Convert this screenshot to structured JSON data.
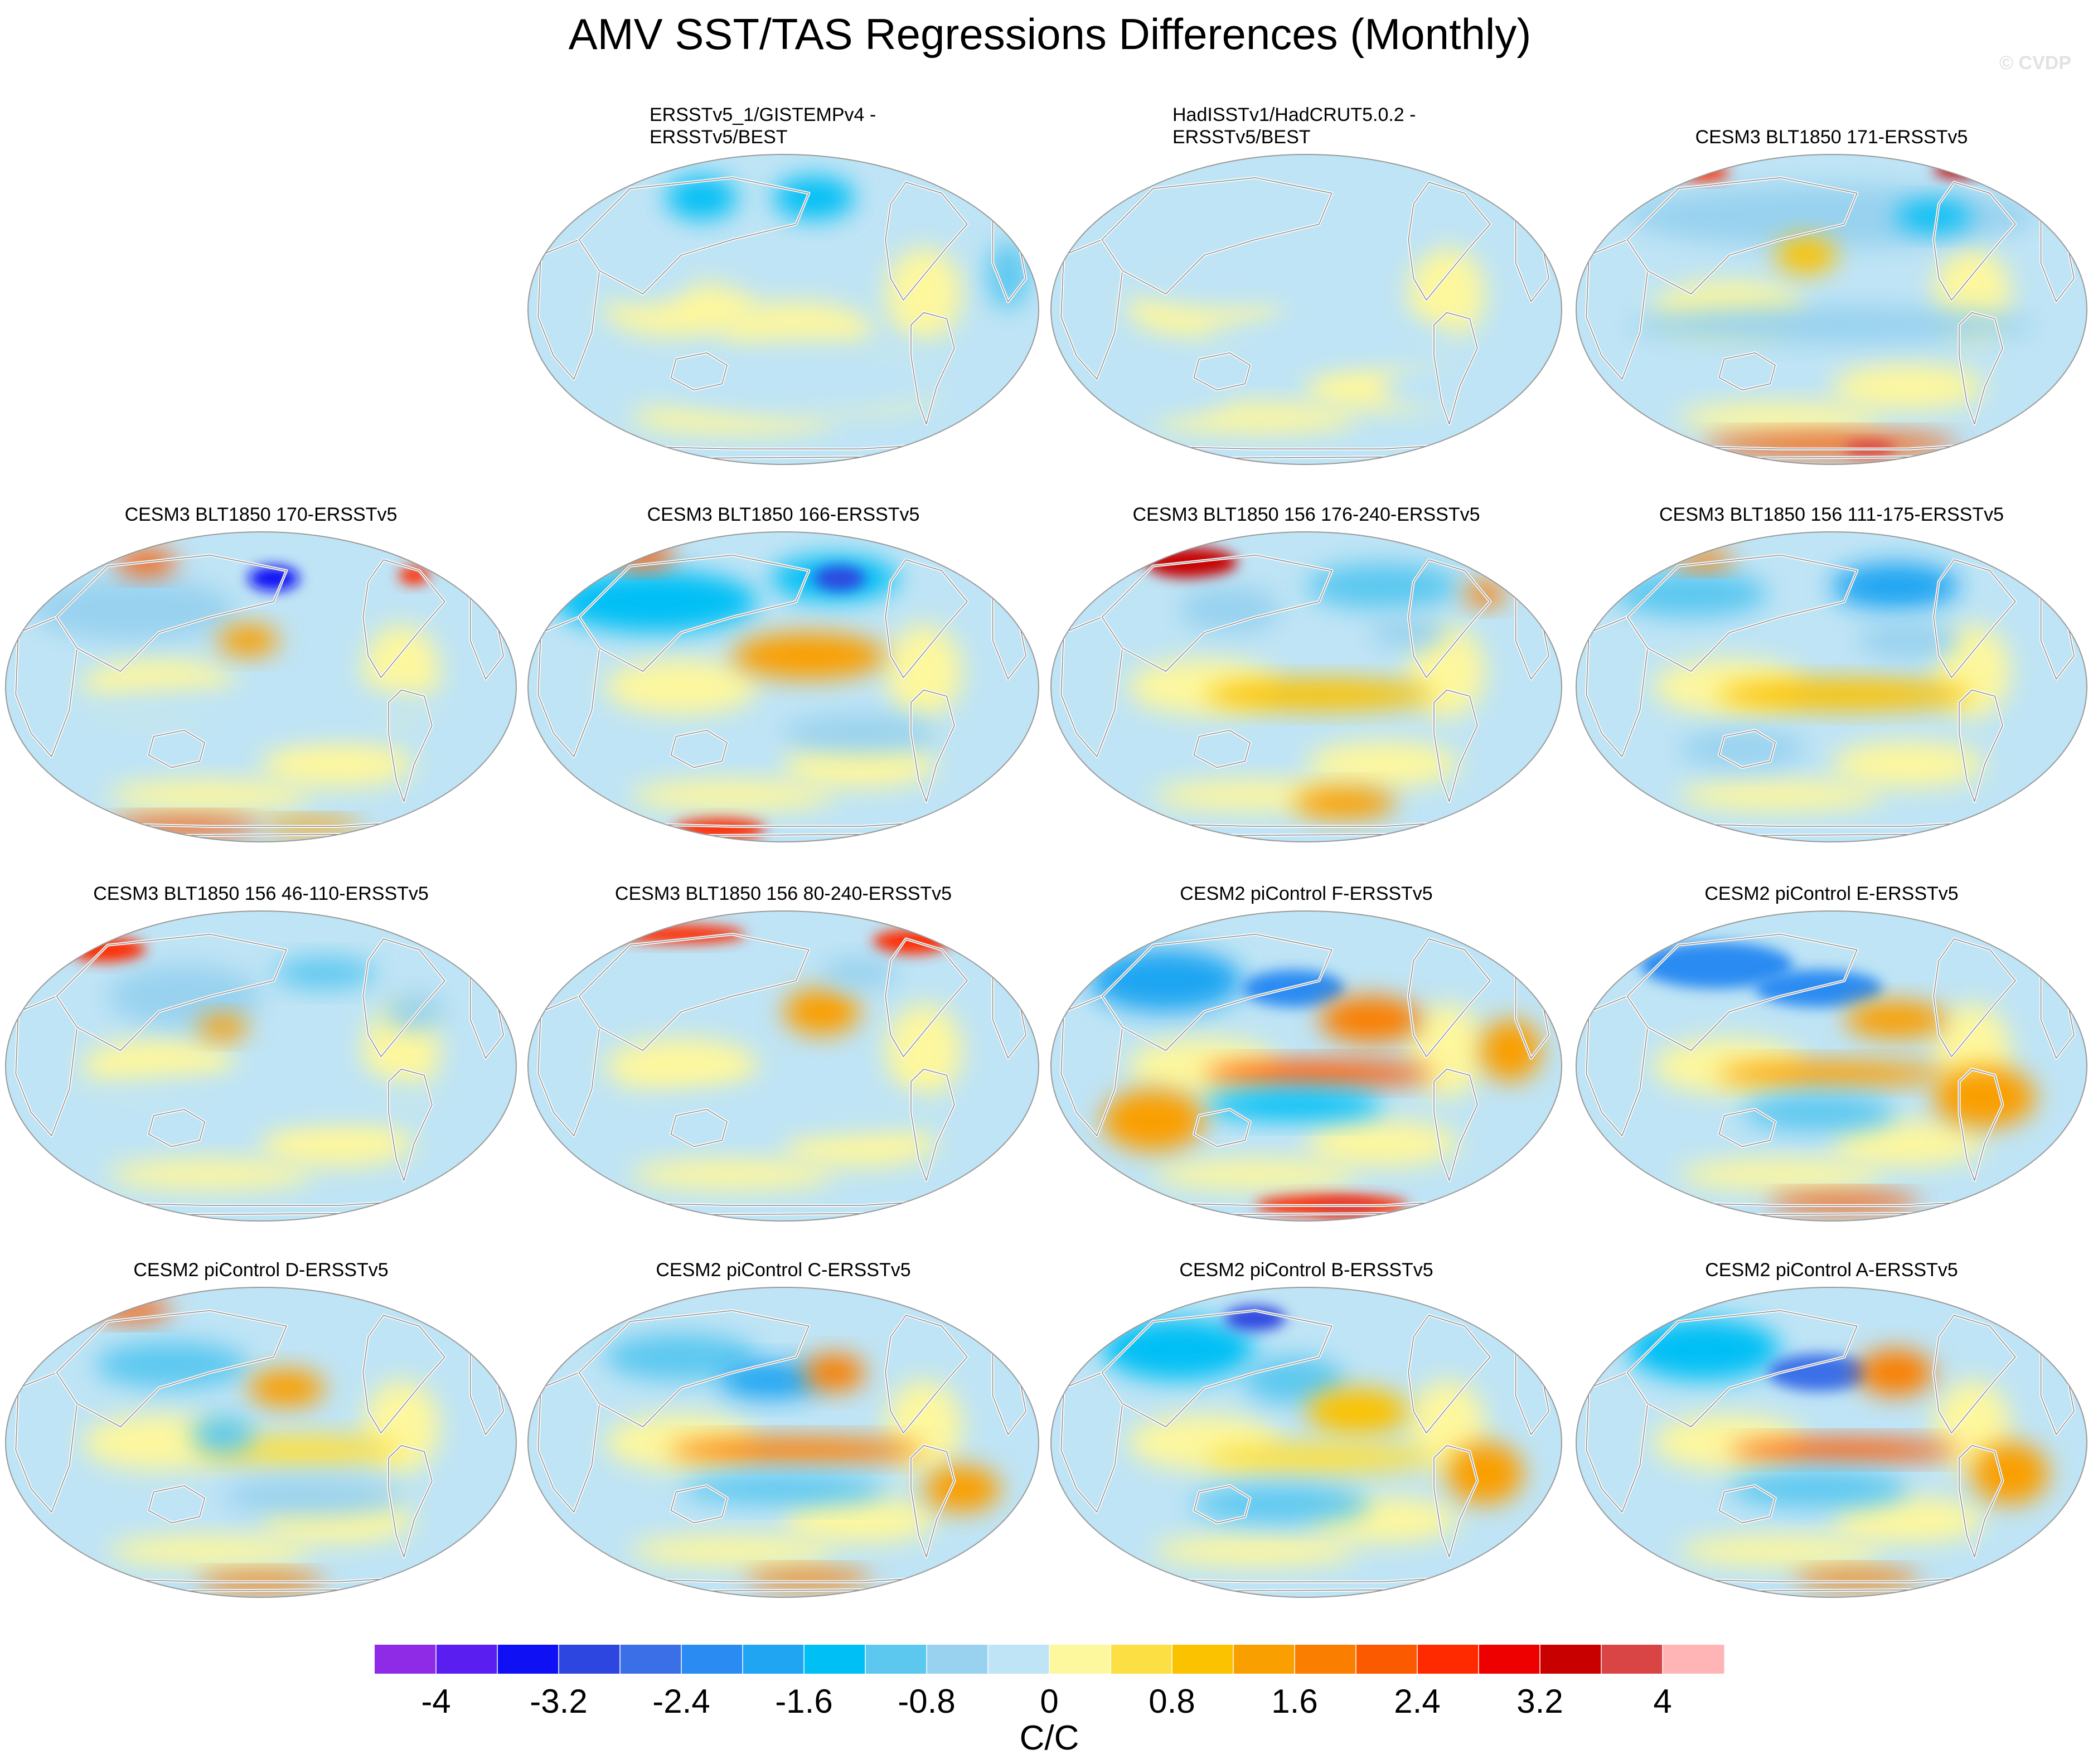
{
  "chart_data": {
    "type": "heatmap",
    "title": "AMV SST/TAS Regressions Differences (Monthly)",
    "watermark": "© CVDP",
    "colorbar": {
      "unit_label": "C/C",
      "tick_labels": [
        "-4",
        "-3.2",
        "-2.4",
        "-1.6",
        "-0.8",
        "0",
        "0.8",
        "1.6",
        "2.4",
        "3.2",
        "4"
      ],
      "levels": [
        -4.4,
        -4,
        -3.6,
        -3.2,
        -2.8,
        -2.4,
        -2,
        -1.6,
        -1.2,
        -0.8,
        -0.4,
        0,
        0.4,
        0.8,
        1.2,
        1.6,
        2,
        2.4,
        2.8,
        3.2,
        3.6,
        4,
        4.4
      ],
      "colors": [
        "#8f2be6",
        "#5a1ff0",
        "#1010f5",
        "#2e46e0",
        "#3a6fe8",
        "#2a8bf2",
        "#1fa5f2",
        "#00bff5",
        "#5cc8f0",
        "#98d2ef",
        "#bfe4f5",
        "#fdf79e",
        "#fce043",
        "#fbc200",
        "#fa9f00",
        "#fa7f00",
        "#fb5a00",
        "#ff2a00",
        "#ee0000",
        "#c80000",
        "#d94545",
        "#ffb5b5"
      ]
    },
    "panels": [
      {
        "title": "ERSSTv5_1/GISTEMPv4 -",
        "title2": "ERSSTv5/BEST",
        "row": 0,
        "col": 1,
        "blobs": [
          [
            0.12,
            -0.72,
            0.16,
            0.14,
            -1.6
          ],
          [
            -0.32,
            -0.72,
            0.14,
            0.14,
            -1.6
          ],
          [
            0.88,
            -0.22,
            0.08,
            0.22,
            -1.2
          ],
          [
            -0.55,
            -0.25,
            0.2,
            0.22,
            -0.4
          ],
          [
            0.05,
            0.15,
            0.3,
            0.2,
            0
          ],
          [
            0.1,
            0.45,
            0.6,
            0.25,
            -0.4
          ]
        ]
      },
      {
        "title": "HadISSTv1/HadCRUT5.0.2 -",
        "title2": "ERSSTv5/BEST",
        "row": 0,
        "col": 2,
        "blobs": [
          [
            -0.3,
            -0.2,
            0.4,
            0.2,
            -0.4
          ],
          [
            0.1,
            0.2,
            0.5,
            0.15,
            -0.4
          ],
          [
            0.6,
            0.5,
            0.3,
            0.2,
            -0.4
          ],
          [
            -0.6,
            0.5,
            0.3,
            0.2,
            -0.4
          ],
          [
            0.3,
            -0.55,
            0.2,
            0.15,
            -0.4
          ]
        ]
      },
      {
        "title": "CESM3 BLT1850 171-ERSSTv5",
        "row": 0,
        "col": 3,
        "blobs": [
          [
            0,
            -0.6,
            0.8,
            0.2,
            -0.8
          ],
          [
            0.4,
            -0.6,
            0.15,
            0.1,
            -1.6
          ],
          [
            0.5,
            -0.9,
            0.1,
            0.05,
            3.2
          ],
          [
            -0.5,
            -0.88,
            0.1,
            0.05,
            2.4
          ],
          [
            0,
            0.1,
            0.8,
            0.12,
            -0.8
          ],
          [
            0,
            0.87,
            0.5,
            0.07,
            2.0
          ],
          [
            0.15,
            0.9,
            0.1,
            0.05,
            3.6
          ],
          [
            -0.1,
            -0.35,
            0.12,
            0.12,
            0.8
          ]
        ]
      },
      {
        "title": "CESM3 BLT1850 170-ERSSTv5",
        "row": 1,
        "col": 0,
        "blobs": [
          [
            -0.5,
            -0.5,
            0.4,
            0.2,
            -0.8
          ],
          [
            0.05,
            -0.7,
            0.1,
            0.08,
            -3.6
          ],
          [
            -0.45,
            -0.8,
            0.12,
            0.08,
            2.0
          ],
          [
            -0.05,
            -0.3,
            0.12,
            0.1,
            1.2
          ],
          [
            0.6,
            -0.72,
            0.06,
            0.06,
            2.4
          ],
          [
            0,
            0.15,
            0.8,
            0.15,
            -0.4
          ],
          [
            -0.3,
            0.9,
            0.3,
            0.06,
            2.0
          ],
          [
            0.2,
            0.9,
            0.2,
            0.05,
            1.2
          ]
        ]
      },
      {
        "title": "CESM3 BLT1850 166-ERSSTv5",
        "row": 1,
        "col": 1,
        "blobs": [
          [
            -0.5,
            -0.55,
            0.4,
            0.2,
            -1.6
          ],
          [
            0.2,
            -0.7,
            0.25,
            0.15,
            -1.6
          ],
          [
            0.22,
            -0.7,
            0.1,
            0.08,
            -3.2
          ],
          [
            -0.55,
            -0.85,
            0.12,
            0.08,
            2.0
          ],
          [
            0.1,
            -0.2,
            0.3,
            0.15,
            1.2
          ],
          [
            0.3,
            0.3,
            0.3,
            0.12,
            -0.8
          ],
          [
            -0.25,
            0.92,
            0.18,
            0.07,
            2.4
          ]
        ]
      },
      {
        "title": "CESM3 BLT1850 156 176-240-ERSSTv5",
        "row": 1,
        "col": 2,
        "blobs": [
          [
            -0.45,
            -0.8,
            0.18,
            0.1,
            3.2
          ],
          [
            -0.3,
            -0.5,
            0.2,
            0.15,
            -0.8
          ],
          [
            0.3,
            -0.65,
            0.3,
            0.15,
            -1.2
          ],
          [
            0.05,
            0.05,
            0.45,
            0.1,
            0.8
          ],
          [
            0.15,
            0.75,
            0.2,
            0.1,
            1.2
          ],
          [
            0.4,
            -0.35,
            0.15,
            0.1,
            -0.8
          ],
          [
            0.7,
            -0.6,
            0.08,
            0.08,
            1.6
          ]
        ]
      },
      {
        "title": "CESM3 BLT1850 156 111-175-ERSSTv5",
        "row": 1,
        "col": 3,
        "blobs": [
          [
            -0.55,
            -0.6,
            0.3,
            0.15,
            -1.2
          ],
          [
            0.25,
            -0.65,
            0.25,
            0.15,
            -2.0
          ],
          [
            0.05,
            0.05,
            0.5,
            0.1,
            0.8
          ],
          [
            -0.5,
            -0.82,
            0.12,
            0.06,
            1.6
          ],
          [
            -0.35,
            0.4,
            0.25,
            0.12,
            -0.8
          ],
          [
            0.3,
            -0.3,
            0.2,
            0.12,
            -0.8
          ]
        ]
      },
      {
        "title": "CESM3 BLT1850 156 46-110-ERSSTv5",
        "row": 2,
        "col": 0,
        "blobs": [
          [
            -0.6,
            -0.75,
            0.15,
            0.08,
            2.4
          ],
          [
            -0.3,
            -0.45,
            0.3,
            0.2,
            -0.8
          ],
          [
            0.25,
            -0.6,
            0.2,
            0.1,
            -1.2
          ],
          [
            -0.15,
            -0.25,
            0.1,
            0.08,
            1.2
          ],
          [
            0,
            0.2,
            0.7,
            0.15,
            -0.4
          ],
          [
            0.6,
            -0.35,
            0.12,
            0.12,
            -0.8
          ]
        ]
      },
      {
        "title": "CESM3 BLT1850 156 80-240-ERSSTv5",
        "row": 2,
        "col": 1,
        "blobs": [
          [
            -0.4,
            -0.85,
            0.25,
            0.06,
            2.4
          ],
          [
            0.5,
            -0.8,
            0.15,
            0.08,
            2.4
          ],
          [
            -0.4,
            -0.5,
            0.3,
            0.15,
            -0.4
          ],
          [
            0.15,
            -0.35,
            0.15,
            0.15,
            1.2
          ],
          [
            0.3,
            -0.6,
            0.15,
            0.1,
            -0.8
          ],
          [
            0,
            0.3,
            0.6,
            0.15,
            -0.4
          ]
        ]
      },
      {
        "title": "CESM2 piControl F-ERSSTv5",
        "row": 2,
        "col": 2,
        "blobs": [
          [
            -0.55,
            -0.55,
            0.3,
            0.2,
            -2.0
          ],
          [
            -0.05,
            -0.5,
            0.2,
            0.12,
            -2.4
          ],
          [
            0.25,
            -0.3,
            0.2,
            0.15,
            1.6
          ],
          [
            0.05,
            0.05,
            0.45,
            0.08,
            2.0
          ],
          [
            -0.05,
            0.25,
            0.35,
            0.1,
            -1.6
          ],
          [
            0.8,
            -0.1,
            0.12,
            0.2,
            1.2
          ],
          [
            0.1,
            0.9,
            0.3,
            0.07,
            2.4
          ],
          [
            0.15,
            0.92,
            0.12,
            0.05,
            3.6
          ],
          [
            -0.6,
            0.35,
            0.2,
            0.2,
            1.2
          ]
        ]
      },
      {
        "title": "CESM2 piControl E-ERSSTv5",
        "row": 2,
        "col": 3,
        "blobs": [
          [
            -0.45,
            -0.65,
            0.3,
            0.15,
            -2.4
          ],
          [
            -0.05,
            -0.5,
            0.25,
            0.12,
            -2.4
          ],
          [
            0.25,
            -0.3,
            0.2,
            0.12,
            1.2
          ],
          [
            0,
            0.05,
            0.45,
            0.08,
            1.2
          ],
          [
            -0.05,
            0.3,
            0.3,
            0.12,
            -1.2
          ],
          [
            0.6,
            0.2,
            0.2,
            0.2,
            1.2
          ],
          [
            0.05,
            0.88,
            0.3,
            0.06,
            2.0
          ]
        ]
      },
      {
        "title": "CESM2 piControl D-ERSSTv5",
        "row": 3,
        "col": 0,
        "blobs": [
          [
            -0.5,
            -0.85,
            0.15,
            0.07,
            2.0
          ],
          [
            -0.35,
            -0.5,
            0.3,
            0.15,
            -1.2
          ],
          [
            0.1,
            -0.35,
            0.15,
            0.12,
            1.2
          ],
          [
            0.15,
            0.05,
            0.4,
            0.1,
            0.4
          ],
          [
            0.2,
            0.35,
            0.35,
            0.12,
            -0.8
          ],
          [
            0,
            0.9,
            0.25,
            0.06,
            1.6
          ],
          [
            -0.15,
            -0.05,
            0.12,
            0.12,
            -1.2
          ]
        ]
      },
      {
        "title": "CESM2 piControl C-ERSSTv5",
        "row": 3,
        "col": 1,
        "blobs": [
          [
            -0.4,
            -0.55,
            0.3,
            0.15,
            -1.2
          ],
          [
            -0.05,
            -0.4,
            0.2,
            0.12,
            -2.0
          ],
          [
            0.2,
            -0.45,
            0.12,
            0.12,
            1.6
          ],
          [
            0.05,
            0.05,
            0.5,
            0.08,
            1.6
          ],
          [
            0,
            0.3,
            0.4,
            0.1,
            -1.2
          ],
          [
            0.7,
            0.3,
            0.15,
            0.15,
            1.2
          ],
          [
            0.1,
            0.88,
            0.25,
            0.06,
            1.6
          ]
        ]
      },
      {
        "title": "CESM2 piControl B-ERSSTv5",
        "row": 3,
        "col": 2,
        "blobs": [
          [
            -0.5,
            -0.6,
            0.3,
            0.2,
            -1.6
          ],
          [
            -0.2,
            -0.8,
            0.12,
            0.08,
            -3.2
          ],
          [
            -0.05,
            -0.4,
            0.2,
            0.15,
            -1.2
          ],
          [
            0.2,
            -0.2,
            0.2,
            0.15,
            0.8
          ],
          [
            0.05,
            0.1,
            0.45,
            0.1,
            0.4
          ],
          [
            -0.1,
            0.4,
            0.35,
            0.12,
            -1.2
          ],
          [
            0.7,
            0.2,
            0.15,
            0.2,
            1.2
          ]
        ]
      },
      {
        "title": "CESM2 piControl A-ERSSTv5",
        "row": 3,
        "col": 3,
        "blobs": [
          [
            -0.5,
            -0.6,
            0.3,
            0.2,
            -1.6
          ],
          [
            -0.05,
            -0.45,
            0.2,
            0.12,
            -2.8
          ],
          [
            0.25,
            -0.45,
            0.15,
            0.15,
            1.6
          ],
          [
            0.05,
            0.05,
            0.45,
            0.07,
            2.0
          ],
          [
            -0.05,
            0.3,
            0.35,
            0.12,
            -1.2
          ],
          [
            0.7,
            0.2,
            0.15,
            0.2,
            1.2
          ],
          [
            0.1,
            0.88,
            0.25,
            0.06,
            1.6
          ]
        ]
      }
    ]
  }
}
